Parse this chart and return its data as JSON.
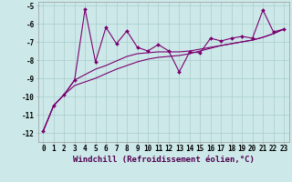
{
  "x": [
    0,
    1,
    2,
    3,
    4,
    5,
    6,
    7,
    8,
    9,
    10,
    11,
    12,
    13,
    14,
    15,
    16,
    17,
    18,
    19,
    20,
    21,
    22,
    23
  ],
  "y_zigzag": [
    -11.9,
    -10.5,
    -9.9,
    -9.1,
    -5.2,
    -8.1,
    -6.2,
    -7.1,
    -6.4,
    -7.3,
    -7.5,
    -7.15,
    -7.5,
    -8.65,
    -7.55,
    -7.6,
    -6.8,
    -6.95,
    -6.8,
    -6.7,
    -6.8,
    -5.25,
    -6.45,
    -6.3
  ],
  "y_upper_trend": [
    -11.9,
    -10.5,
    -9.9,
    -9.1,
    -8.8,
    -8.5,
    -8.3,
    -8.05,
    -7.8,
    -7.65,
    -7.6,
    -7.55,
    -7.55,
    -7.55,
    -7.5,
    -7.4,
    -7.3,
    -7.2,
    -7.1,
    -7.0,
    -6.9,
    -6.75,
    -6.55,
    -6.3
  ],
  "y_lower_trend": [
    -11.9,
    -10.5,
    -9.9,
    -9.4,
    -9.2,
    -9.0,
    -8.75,
    -8.5,
    -8.3,
    -8.1,
    -7.95,
    -7.85,
    -7.8,
    -7.75,
    -7.65,
    -7.5,
    -7.35,
    -7.2,
    -7.1,
    -7.0,
    -6.9,
    -6.75,
    -6.55,
    -6.3
  ],
  "background_color": "#cce8e8",
  "grid_color": "#aacece",
  "line_color": "#7b0070",
  "xlim": [
    0,
    23
  ],
  "ylim": [
    -12.5,
    -4.8
  ],
  "xlabel": "Windchill (Refroidissement éolien,°C)",
  "xlabel_fontsize": 6.5,
  "tick_fontsize": 5.5
}
